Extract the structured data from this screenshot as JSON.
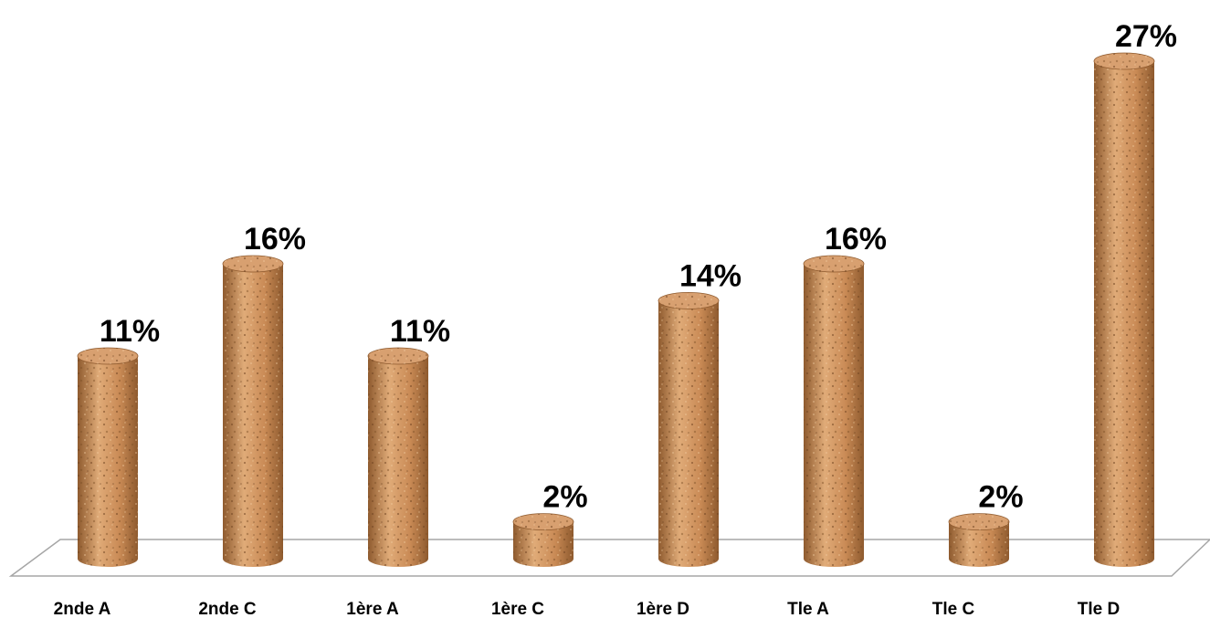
{
  "chart_data": {
    "type": "bar",
    "style": "3d-cylinder",
    "categories": [
      "2nde A",
      "2nde C",
      "1ère A",
      "1ère C",
      "1ère D",
      "Tle A",
      "Tle C",
      "Tle D"
    ],
    "values": [
      11,
      16,
      11,
      2,
      14,
      16,
      2,
      27
    ],
    "value_labels": [
      "11%",
      "16%",
      "11%",
      "2%",
      "14%",
      "16%",
      "2%",
      "27%"
    ],
    "unit": "%",
    "title": "",
    "xlabel": "",
    "ylabel": "",
    "ylim": [
      0,
      27
    ],
    "grid": false,
    "legend": "none",
    "colors": {
      "bar_fill": "#c98a55",
      "bar_dark": "#8e5a2e",
      "bar_light": "#e0ab78",
      "bar_top": "#d8a070",
      "floor_stroke": "#a6a6a6",
      "text": "#000000"
    }
  }
}
